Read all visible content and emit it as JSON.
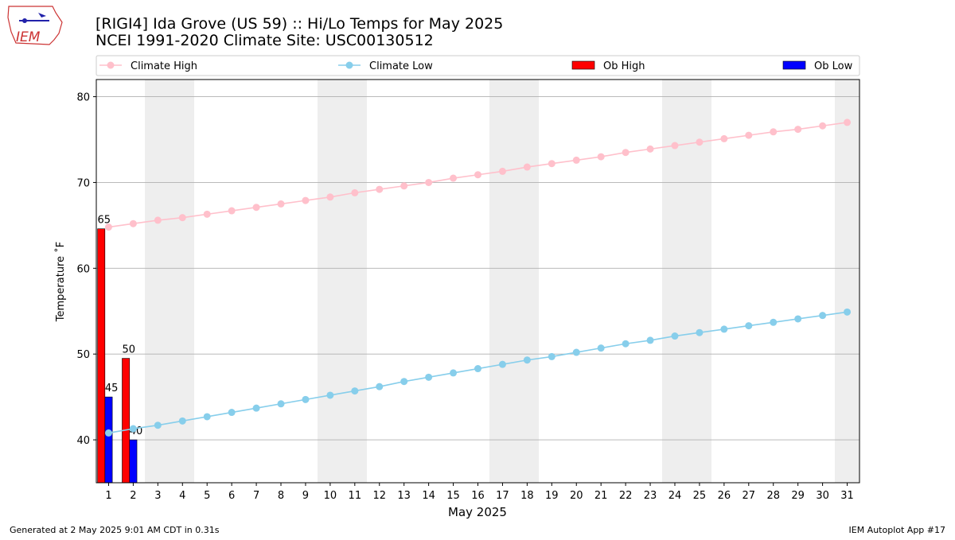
{
  "chart_data": {
    "type": "bar_line",
    "title": "[RIGI4] Ida Grove (US 59) :: Hi/Lo Temps for May 2025",
    "subtitle": "NCEI 1991-2020 Climate Site: USC00130512",
    "logo_text": "IEM",
    "xlabel": "May 2025",
    "ylabel": "Temperature ˚F",
    "footer_left": "Generated at 2 May 2025 9:01 AM CDT in 0.31s",
    "footer_right": "IEM Autoplot App #17",
    "x": [
      1,
      2,
      3,
      4,
      5,
      6,
      7,
      8,
      9,
      10,
      11,
      12,
      13,
      14,
      15,
      16,
      17,
      18,
      19,
      20,
      21,
      22,
      23,
      24,
      25,
      26,
      27,
      28,
      29,
      30,
      31
    ],
    "xlim": [
      0.5,
      31.5
    ],
    "xticks": [
      1,
      2,
      3,
      4,
      5,
      6,
      7,
      8,
      9,
      10,
      11,
      12,
      13,
      14,
      15,
      16,
      17,
      18,
      19,
      20,
      21,
      22,
      23,
      24,
      25,
      26,
      27,
      28,
      29,
      30,
      31
    ],
    "ylim": [
      35,
      82
    ],
    "yticks": [
      40,
      50,
      60,
      70,
      80
    ],
    "grid": true,
    "series": [
      {
        "name": "Climate High",
        "kind": "line",
        "color": "#ffc0cb",
        "values": [
          64.8,
          65.2,
          65.6,
          65.9,
          66.3,
          66.7,
          67.1,
          67.5,
          67.9,
          68.3,
          68.8,
          69.2,
          69.6,
          70.0,
          70.5,
          70.9,
          71.3,
          71.8,
          72.2,
          72.6,
          73.0,
          73.5,
          73.9,
          74.3,
          74.7,
          75.1,
          75.5,
          75.9,
          76.2,
          76.6,
          77.0
        ]
      },
      {
        "name": "Climate Low",
        "kind": "line",
        "color": "#87ceeb",
        "values": [
          40.8,
          41.3,
          41.7,
          42.2,
          42.7,
          43.2,
          43.7,
          44.2,
          44.7,
          45.2,
          45.7,
          46.2,
          46.8,
          47.3,
          47.8,
          48.3,
          48.8,
          49.3,
          49.7,
          50.2,
          50.7,
          51.2,
          51.6,
          52.1,
          52.5,
          52.9,
          53.3,
          53.7,
          54.1,
          54.5,
          54.9
        ]
      },
      {
        "name": "Ob High",
        "kind": "bar",
        "color": "#ff0000",
        "values": [
          64.6,
          49.5,
          null,
          null,
          null,
          null,
          null,
          null,
          null,
          null,
          null,
          null,
          null,
          null,
          null,
          null,
          null,
          null,
          null,
          null,
          null,
          null,
          null,
          null,
          null,
          null,
          null,
          null,
          null,
          null,
          null
        ],
        "value_labels": [
          "65",
          "50",
          null,
          null,
          null,
          null,
          null,
          null,
          null,
          null,
          null,
          null,
          null,
          null,
          null,
          null,
          null,
          null,
          null,
          null,
          null,
          null,
          null,
          null,
          null,
          null,
          null,
          null,
          null,
          null,
          null
        ]
      },
      {
        "name": "Ob Low",
        "kind": "bar",
        "color": "#0000ff",
        "values": [
          45,
          40,
          null,
          null,
          null,
          null,
          null,
          null,
          null,
          null,
          null,
          null,
          null,
          null,
          null,
          null,
          null,
          null,
          null,
          null,
          null,
          null,
          null,
          null,
          null,
          null,
          null,
          null,
          null,
          null,
          null
        ],
        "value_labels": [
          "45",
          "40",
          null,
          null,
          null,
          null,
          null,
          null,
          null,
          null,
          null,
          null,
          null,
          null,
          null,
          null,
          null,
          null,
          null,
          null,
          null,
          null,
          null,
          null,
          null,
          null,
          null,
          null,
          null,
          null,
          null
        ]
      }
    ]
  }
}
